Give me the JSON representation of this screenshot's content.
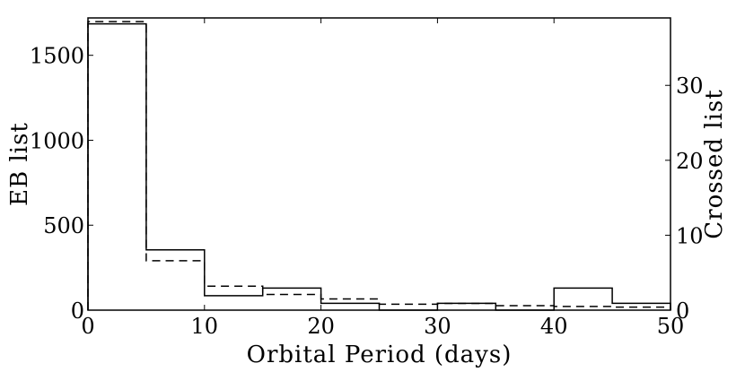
{
  "chart_data": {
    "type": "histogram",
    "title": "",
    "xlabel": "Orbital Period (days)",
    "ylabel_left": "EB list",
    "ylabel_right": "Crossed list",
    "bin_edges": [
      0,
      5,
      10,
      15,
      20,
      25,
      30,
      35,
      40,
      45,
      50
    ],
    "xlim": [
      0,
      50
    ],
    "ylim_left": [
      0,
      1720
    ],
    "ylim_right": [
      0,
      39
    ],
    "x_ticks": [
      "0",
      "10",
      "20",
      "30",
      "40",
      "50"
    ],
    "y_ticks_left": [
      "0",
      "500",
      "1000",
      "1500"
    ],
    "y_ticks_right": [
      "0",
      "10",
      "20",
      "30"
    ],
    "grid": false,
    "series": [
      {
        "axis": "left",
        "style": "solid",
        "values": [
          1685,
          355,
          85,
          130,
          40,
          0,
          40,
          0,
          130,
          40
        ]
      },
      {
        "axis": "right",
        "style": "dashed",
        "values": [
          38.5,
          6.6,
          3.2,
          2.1,
          1.5,
          0.8,
          0.9,
          0.6,
          0.5,
          0.4
        ]
      }
    ]
  }
}
